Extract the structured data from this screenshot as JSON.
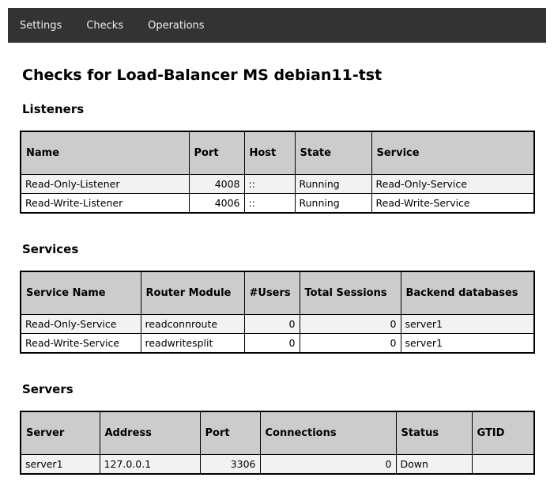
{
  "nav": {
    "items": [
      {
        "label": "Settings"
      },
      {
        "label": "Checks"
      },
      {
        "label": "Operations"
      }
    ]
  },
  "page": {
    "title": "Checks for Load-Balancer MS debian11-tst"
  },
  "sections": {
    "listeners": {
      "heading": "Listeners",
      "columns": [
        "Name",
        "Port",
        "Host",
        "State",
        "Service"
      ],
      "rows": [
        [
          "Read-Only-Listener",
          "4008",
          "::",
          "Running",
          "Read-Only-Service"
        ],
        [
          "Read-Write-Listener",
          "4006",
          "::",
          "Running",
          "Read-Write-Service"
        ]
      ]
    },
    "services": {
      "heading": "Services",
      "columns": [
        "Service Name",
        "Router Module",
        "#Users",
        "Total Sessions",
        "Backend databases"
      ],
      "rows": [
        [
          "Read-Only-Service",
          "readconnroute",
          "0",
          "0",
          "server1"
        ],
        [
          "Read-Write-Service",
          "readwritesplit",
          "0",
          "0",
          "server1"
        ]
      ]
    },
    "servers": {
      "heading": "Servers",
      "columns": [
        "Server",
        "Address",
        "Port",
        "Connections",
        "Status",
        "GTID"
      ],
      "rows": [
        [
          "server1",
          "127.0.0.1",
          "3306",
          "0",
          "Down",
          ""
        ]
      ]
    }
  },
  "colors": {
    "navbar_bg": "#333333",
    "nav_text": "#eeeeee",
    "table_header_bg": "#cccccc",
    "row_stripe_bg": "#f2f2f2",
    "table_border": "#000000"
  }
}
